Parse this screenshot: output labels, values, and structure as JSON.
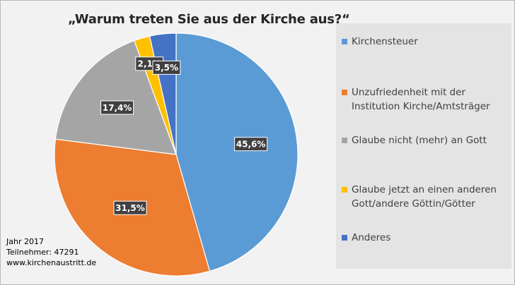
{
  "chart_data": {
    "type": "pie",
    "title": "„Warum treten Sie aus der Kirche aus?“",
    "start_angle_deg": 0,
    "direction": "clockwise",
    "slices": [
      {
        "label": "Kirchensteuer",
        "value": 45.6,
        "value_label": "45,6%",
        "color": "#5b9bd5"
      },
      {
        "label": "Unzufriedenheit mit der Institution Kirche/Amtsträger",
        "value": 31.5,
        "value_label": "31,5%",
        "color": "#ed7d31"
      },
      {
        "label": "Glaube nicht (mehr) an Gott",
        "value": 17.4,
        "value_label": "17,4%",
        "color": "#a5a5a5"
      },
      {
        "label": "Glaube jetzt an einen anderen Gott/andere Göttin/Götter",
        "value": 2.1,
        "value_label": "2,1%",
        "color": "#ffc000"
      },
      {
        "label": "Anderes",
        "value": 3.5,
        "value_label": "3,5%",
        "color": "#4472c4"
      }
    ],
    "legend": {
      "position": "right",
      "entries": [
        {
          "line1": "Kirchensteuer",
          "line2": ""
        },
        {
          "line1": "Unzufriedenheit mit der",
          "line2": "Institution Kirche/Amtsträger"
        },
        {
          "line1": "Glaube nicht (mehr) an Gott",
          "line2": ""
        },
        {
          "line1": "Glaube jetzt an einen anderen",
          "line2": "Gott/andere Göttin/Götter"
        },
        {
          "line1": "Anderes",
          "line2": ""
        }
      ]
    }
  },
  "footer": {
    "year": "Jahr 2017",
    "participants": "Teilnehmer: 47291",
    "website": "www.kirchenaustritt.de"
  }
}
